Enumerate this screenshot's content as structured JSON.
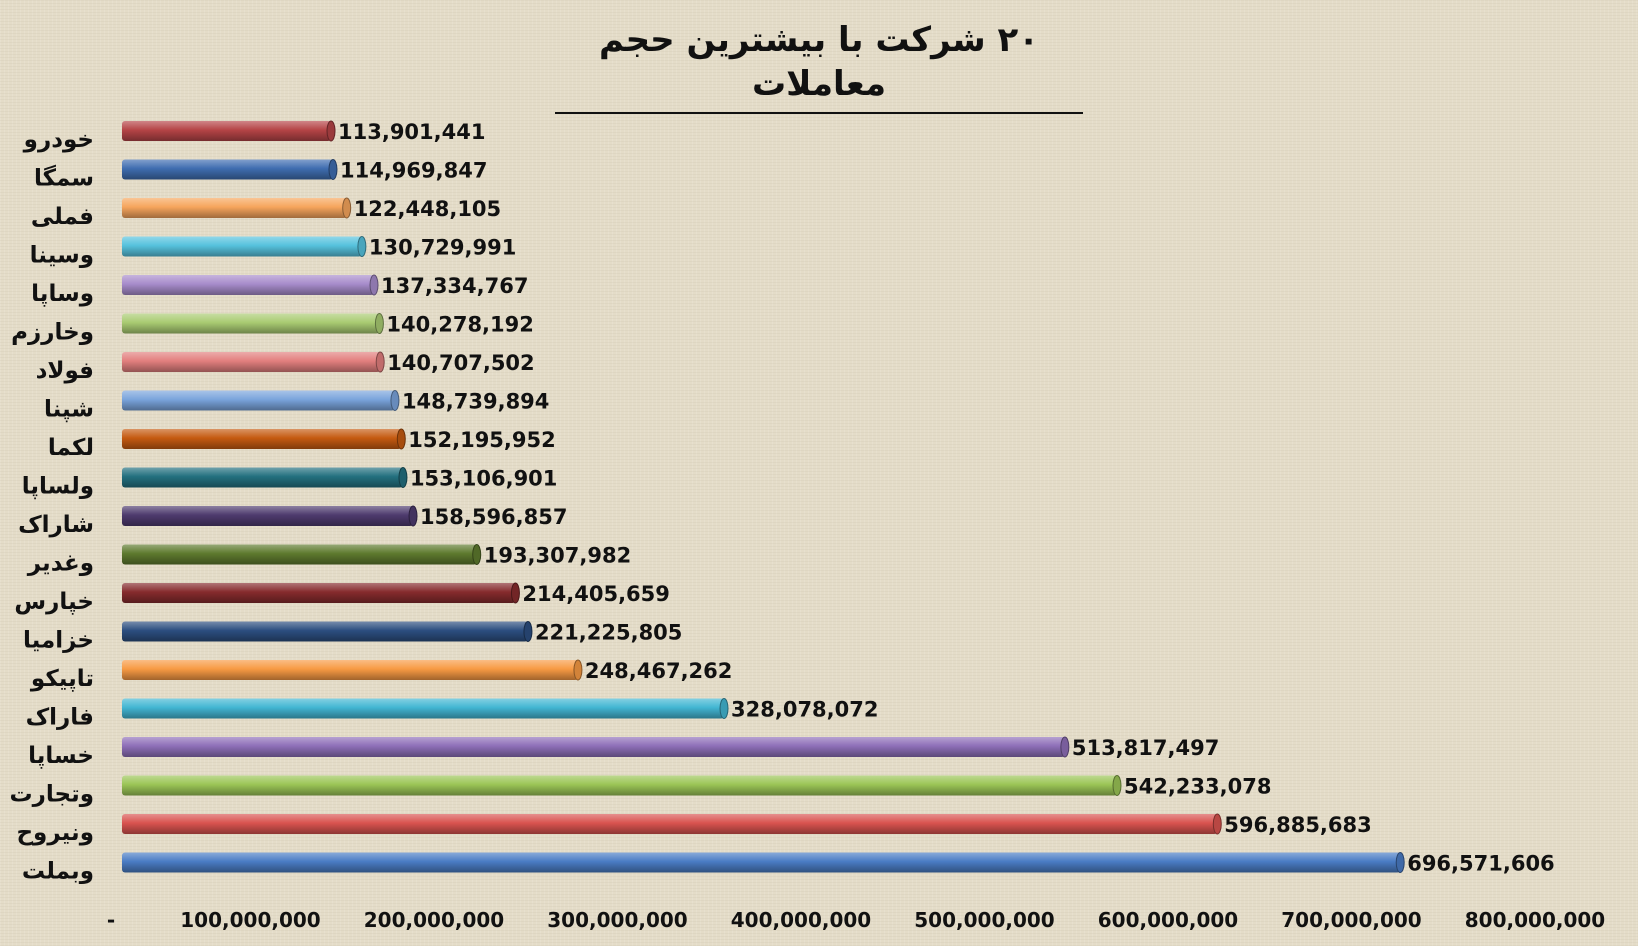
{
  "chart_data": {
    "type": "bar",
    "orientation": "horizontal",
    "title": "۲۰ شرکت با بیشترین حجم معاملات",
    "xlabel": "",
    "ylabel": "",
    "xlim": [
      0,
      800000000
    ],
    "grid": false,
    "legend": "none",
    "ticks": [
      {
        "value": 0,
        "label": "-"
      },
      {
        "value": 100000000,
        "label": "100,000,000"
      },
      {
        "value": 200000000,
        "label": "200,000,000"
      },
      {
        "value": 300000000,
        "label": "300,000,000"
      },
      {
        "value": 400000000,
        "label": "400,000,000"
      },
      {
        "value": 500000000,
        "label": "500,000,000"
      },
      {
        "value": 600000000,
        "label": "600,000,000"
      },
      {
        "value": 700000000,
        "label": "700,000,000"
      },
      {
        "value": 800000000,
        "label": "800,000,000"
      }
    ],
    "bars": [
      {
        "category": "خودرو",
        "value": 113901441,
        "label": "113,901,441",
        "color": "#b54446"
      },
      {
        "category": "سمگا",
        "value": 114969847,
        "label": "114,969,847",
        "color": "#3f6db0"
      },
      {
        "category": "فملی",
        "value": 122448105,
        "label": "122,448,105",
        "color": "#f6a55c"
      },
      {
        "category": "وسینا",
        "value": 130729991,
        "label": "130,729,991",
        "color": "#56c2dd"
      },
      {
        "category": "وساپا",
        "value": 137334767,
        "label": "137,334,767",
        "color": "#a78ccb"
      },
      {
        "category": "وخارزم",
        "value": 140278192,
        "label": "140,278,192",
        "color": "#a9cb72"
      },
      {
        "category": "فولاد",
        "value": 140707502,
        "label": "140,707,502",
        "color": "#e27f7e"
      },
      {
        "category": "شپنا",
        "value": 148739894,
        "label": "148,739,894",
        "color": "#7aa4dc"
      },
      {
        "category": "لکما",
        "value": 152195952,
        "label": "152,195,952",
        "color": "#c55a11"
      },
      {
        "category": "ولساپا",
        "value": 153106901,
        "label": "153,106,901",
        "color": "#23707f"
      },
      {
        "category": "شاراک",
        "value": 158596857,
        "label": "158,596,857",
        "color": "#4e3b6e"
      },
      {
        "category": "وغدیر",
        "value": 193307982,
        "label": "193,307,982",
        "color": "#5e7a2e"
      },
      {
        "category": "خپارس",
        "value": 214405659,
        "label": "214,405,659",
        "color": "#862b2d"
      },
      {
        "category": "خزامیا",
        "value": 221225805,
        "label": "221,225,805",
        "color": "#2c4e80"
      },
      {
        "category": "تاپیکو",
        "value": 248467262,
        "label": "248,467,262",
        "color": "#f79a43"
      },
      {
        "category": "فاراک",
        "value": 328078072,
        "label": "328,078,072",
        "color": "#42b6d3"
      },
      {
        "category": "خساپا",
        "value": 513817497,
        "label": "513,817,497",
        "color": "#8e6fb8"
      },
      {
        "category": "وتجارت",
        "value": 542233078,
        "label": "542,233,078",
        "color": "#9bc556"
      },
      {
        "category": "ونیروح",
        "value": 596885683,
        "label": "596,885,683",
        "color": "#d9534f"
      },
      {
        "category": "وبملت",
        "value": 696571606,
        "label": "696,571,606",
        "color": "#4a7cc4"
      }
    ]
  }
}
